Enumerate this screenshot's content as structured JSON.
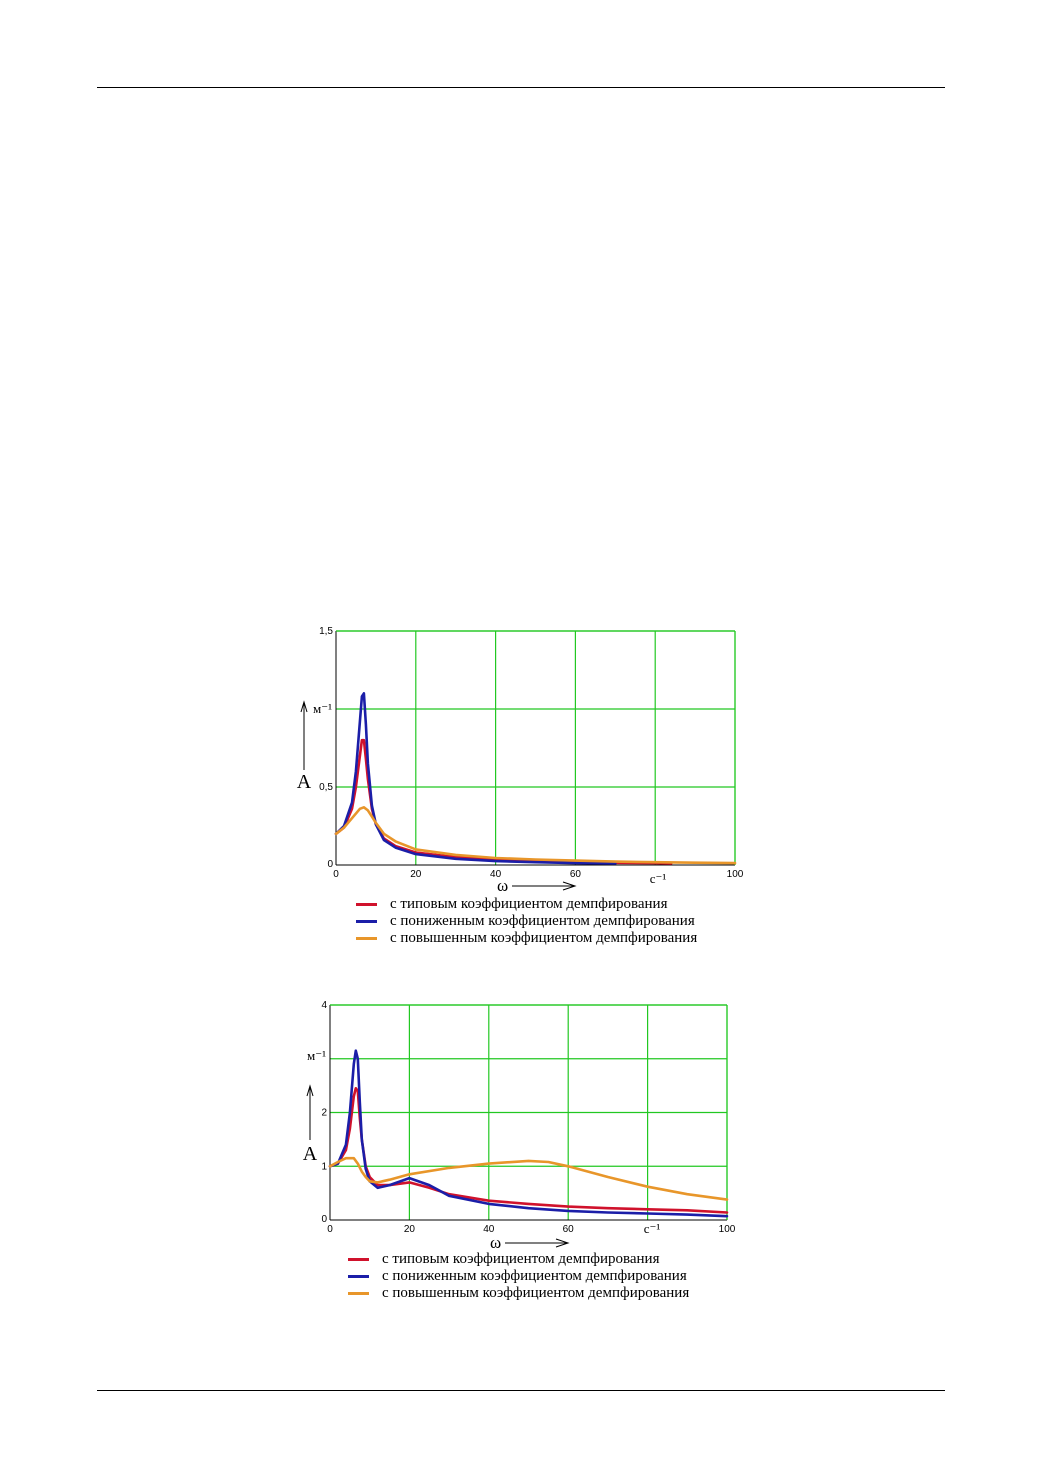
{
  "legend_labels": [
    "с типовым коэффициентом демпфирования",
    "с пониженным коэффициентом демпфирования",
    "с повышенным коэффициентом демпфирования"
  ],
  "colors": {
    "typical": "#d0122c",
    "lowered": "#1b1ea8",
    "raised": "#e8962a",
    "grid": "#22c822"
  },
  "chart_data": [
    {
      "type": "line",
      "title": "",
      "xlabel": "ω",
      "x_unit": "с⁻¹",
      "ylabel": "A",
      "y_unit": "м⁻¹",
      "xlim": [
        0,
        100
      ],
      "ylim": [
        0,
        1.5
      ],
      "x_ticks": [
        "0",
        "20",
        "40",
        "60",
        "100"
      ],
      "y_ticks": [
        "0",
        "0,5",
        "1,5"
      ],
      "grid": true,
      "series": [
        {
          "name": "с типовым коэффициентом демпфирования",
          "color": "#d0122c",
          "x": [
            0,
            2,
            4,
            5,
            6,
            6.5,
            7,
            7.5,
            8,
            9,
            10,
            12,
            15,
            20,
            30,
            40,
            50,
            60,
            70,
            80,
            84
          ],
          "y": [
            0.2,
            0.24,
            0.36,
            0.5,
            0.7,
            0.8,
            0.8,
            0.68,
            0.55,
            0.36,
            0.26,
            0.17,
            0.12,
            0.08,
            0.05,
            0.035,
            0.025,
            0.018,
            0.014,
            0.012,
            0.01
          ]
        },
        {
          "name": "с пониженным коэффициентом демпфирования",
          "color": "#1b1ea8",
          "x": [
            0,
            2,
            4,
            5,
            6,
            6.5,
            7,
            7.5,
            8,
            9,
            10,
            12,
            15,
            20,
            30,
            40,
            50,
            60,
            70
          ],
          "y": [
            0.2,
            0.25,
            0.4,
            0.6,
            0.92,
            1.08,
            1.1,
            0.9,
            0.65,
            0.38,
            0.26,
            0.16,
            0.11,
            0.07,
            0.04,
            0.025,
            0.018,
            0.012,
            0.01
          ]
        },
        {
          "name": "с повышенным коэффициентом демпфирования",
          "color": "#e8962a",
          "x": [
            0,
            2,
            4,
            6,
            7,
            8,
            9,
            10,
            12,
            15,
            20,
            30,
            40,
            50,
            60,
            70,
            80,
            90,
            100
          ],
          "y": [
            0.2,
            0.24,
            0.3,
            0.36,
            0.37,
            0.35,
            0.31,
            0.27,
            0.2,
            0.15,
            0.1,
            0.065,
            0.045,
            0.035,
            0.028,
            0.022,
            0.018,
            0.015,
            0.012
          ]
        }
      ]
    },
    {
      "type": "line",
      "title": "",
      "xlabel": "ω",
      "x_unit": "с⁻¹",
      "ylabel": "A",
      "y_unit": "м⁻¹",
      "xlim": [
        0,
        100
      ],
      "ylim": [
        0,
        4
      ],
      "x_ticks": [
        "0",
        "20",
        "40",
        "60",
        "100"
      ],
      "y_ticks": [
        "0",
        "1",
        "2",
        "4"
      ],
      "grid": true,
      "series": [
        {
          "name": "с типовым коэффициентом демпфирования",
          "color": "#d0122c",
          "x": [
            0,
            2,
            4,
            5,
            6,
            6.5,
            7,
            7.5,
            8,
            9,
            10,
            12,
            15,
            20,
            25,
            30,
            40,
            50,
            60,
            70,
            80,
            90,
            100
          ],
          "y": [
            1,
            1.05,
            1.3,
            1.7,
            2.3,
            2.45,
            2.4,
            1.9,
            1.5,
            1.0,
            0.8,
            0.65,
            0.65,
            0.7,
            0.6,
            0.48,
            0.36,
            0.3,
            0.25,
            0.22,
            0.2,
            0.18,
            0.14
          ]
        },
        {
          "name": "с пониженным коэффициентом демпфирования",
          "color": "#1b1ea8",
          "x": [
            0,
            2,
            4,
            5,
            6,
            6.5,
            7,
            7.5,
            8,
            9,
            10,
            12,
            15,
            20,
            25,
            30,
            40,
            50,
            60,
            70,
            80,
            90,
            100
          ],
          "y": [
            1,
            1.05,
            1.4,
            2.0,
            2.9,
            3.15,
            3.0,
            2.2,
            1.5,
            0.95,
            0.72,
            0.6,
            0.65,
            0.78,
            0.65,
            0.45,
            0.3,
            0.22,
            0.17,
            0.14,
            0.12,
            0.1,
            0.07
          ]
        },
        {
          "name": "с повышенным коэффициентом демпфирования",
          "color": "#e8962a",
          "x": [
            0,
            2,
            4,
            6,
            7,
            8,
            9,
            10,
            12,
            15,
            20,
            30,
            40,
            50,
            55,
            60,
            70,
            80,
            90,
            100
          ],
          "y": [
            1,
            1.08,
            1.15,
            1.15,
            1.05,
            0.9,
            0.8,
            0.72,
            0.7,
            0.75,
            0.85,
            0.97,
            1.05,
            1.1,
            1.08,
            1.0,
            0.8,
            0.62,
            0.48,
            0.38
          ]
        }
      ]
    }
  ]
}
